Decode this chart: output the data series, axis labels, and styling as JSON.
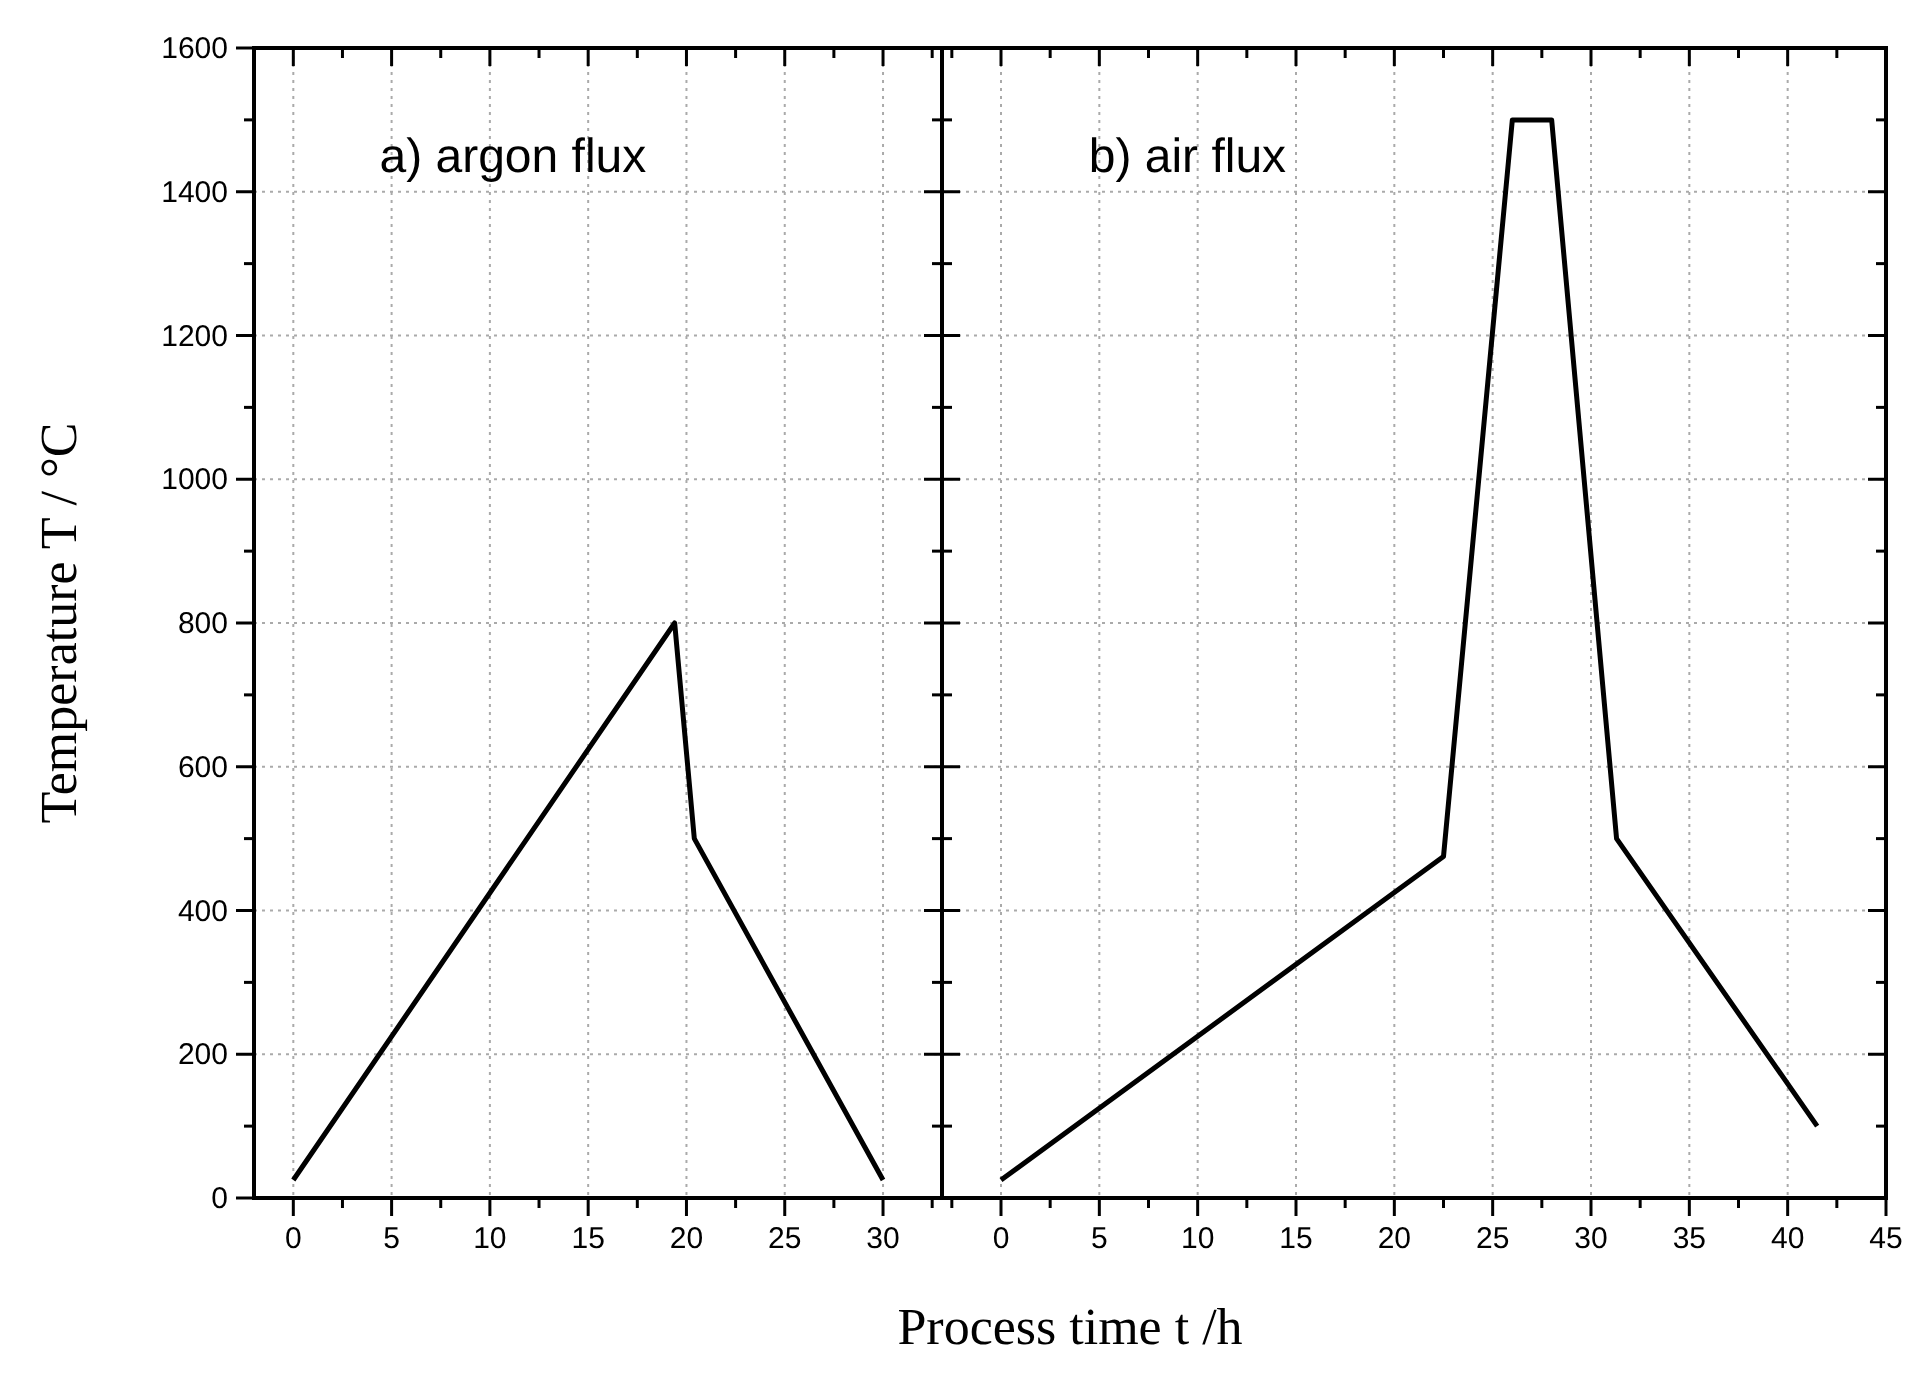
{
  "chart_data": [
    {
      "type": "line",
      "ylabel": "Temperature T / °C",
      "xlabel": "Process time t /h",
      "annotations": [
        "a) argon flux"
      ],
      "grid": true,
      "line_style": "solid",
      "series": [
        {
          "color": "#000000",
          "x": [
            0,
            19.4,
            20.4,
            30
          ],
          "values": [
            25,
            800,
            500,
            25
          ]
        }
      ],
      "xlim": [
        -2,
        33
      ],
      "xticks": [
        0,
        {
          "value": 2.5,
          "label": null
        },
        5,
        {
          "value": 7.5,
          "label": null
        },
        10,
        {
          "value": 12.5,
          "label": null
        },
        15,
        {
          "value": 17.5,
          "label": null
        },
        20,
        {
          "value": 22.5,
          "label": null
        },
        25,
        {
          "value": 27.5,
          "label": null
        },
        30,
        {
          "value": 32.5,
          "label": null
        }
      ],
      "ylim": [
        0,
        1600
      ],
      "yticks": [
        0,
        {
          "value": 100,
          "label": null
        },
        200,
        {
          "value": 300,
          "label": null
        },
        400,
        {
          "value": 500,
          "label": null
        },
        600,
        {
          "value": 700,
          "label": null
        },
        800,
        {
          "value": 900,
          "label": null
        },
        1000,
        {
          "value": 1100,
          "label": null
        },
        1200,
        {
          "value": 1300,
          "label": null
        },
        1400,
        {
          "value": 1500,
          "label": null
        },
        1600
      ]
    },
    {
      "type": "line",
      "annotations": [
        "b) air flux"
      ],
      "grid": true,
      "line_style": "solid",
      "tick_labels": "x",
      "series": [
        {
          "color": "#000000",
          "x": [
            0,
            22.5,
            26,
            28,
            31.3,
            41.5
          ],
          "values": [
            25,
            475,
            1500,
            1500,
            500,
            100
          ]
        }
      ],
      "xlim": [
        -3,
        45
      ],
      "xticks": [
        {
          "value": -2.5,
          "label": null
        },
        0,
        {
          "value": 2.5,
          "label": null
        },
        5,
        {
          "value": 7.5,
          "label": null
        },
        10,
        {
          "value": 12.5,
          "label": null
        },
        15,
        {
          "value": 17.5,
          "label": null
        },
        20,
        {
          "value": 22.5,
          "label": null
        },
        25,
        {
          "value": 27.5,
          "label": null
        },
        30,
        {
          "value": 32.5,
          "label": null
        },
        35,
        {
          "value": 37.5,
          "label": null
        },
        40,
        {
          "value": 42.5,
          "label": null
        },
        45
      ],
      "ylim": [
        0,
        1600
      ],
      "yticks": [
        0,
        {
          "value": 100,
          "label": null
        },
        200,
        {
          "value": 300,
          "label": null
        },
        400,
        {
          "value": 500,
          "label": null
        },
        600,
        {
          "value": 700,
          "label": null
        },
        800,
        {
          "value": 900,
          "label": null
        },
        1000,
        {
          "value": 1100,
          "label": null
        },
        1200,
        {
          "value": 1300,
          "label": null
        },
        1400,
        {
          "value": 1500,
          "label": null
        },
        1600
      ]
    }
  ]
}
